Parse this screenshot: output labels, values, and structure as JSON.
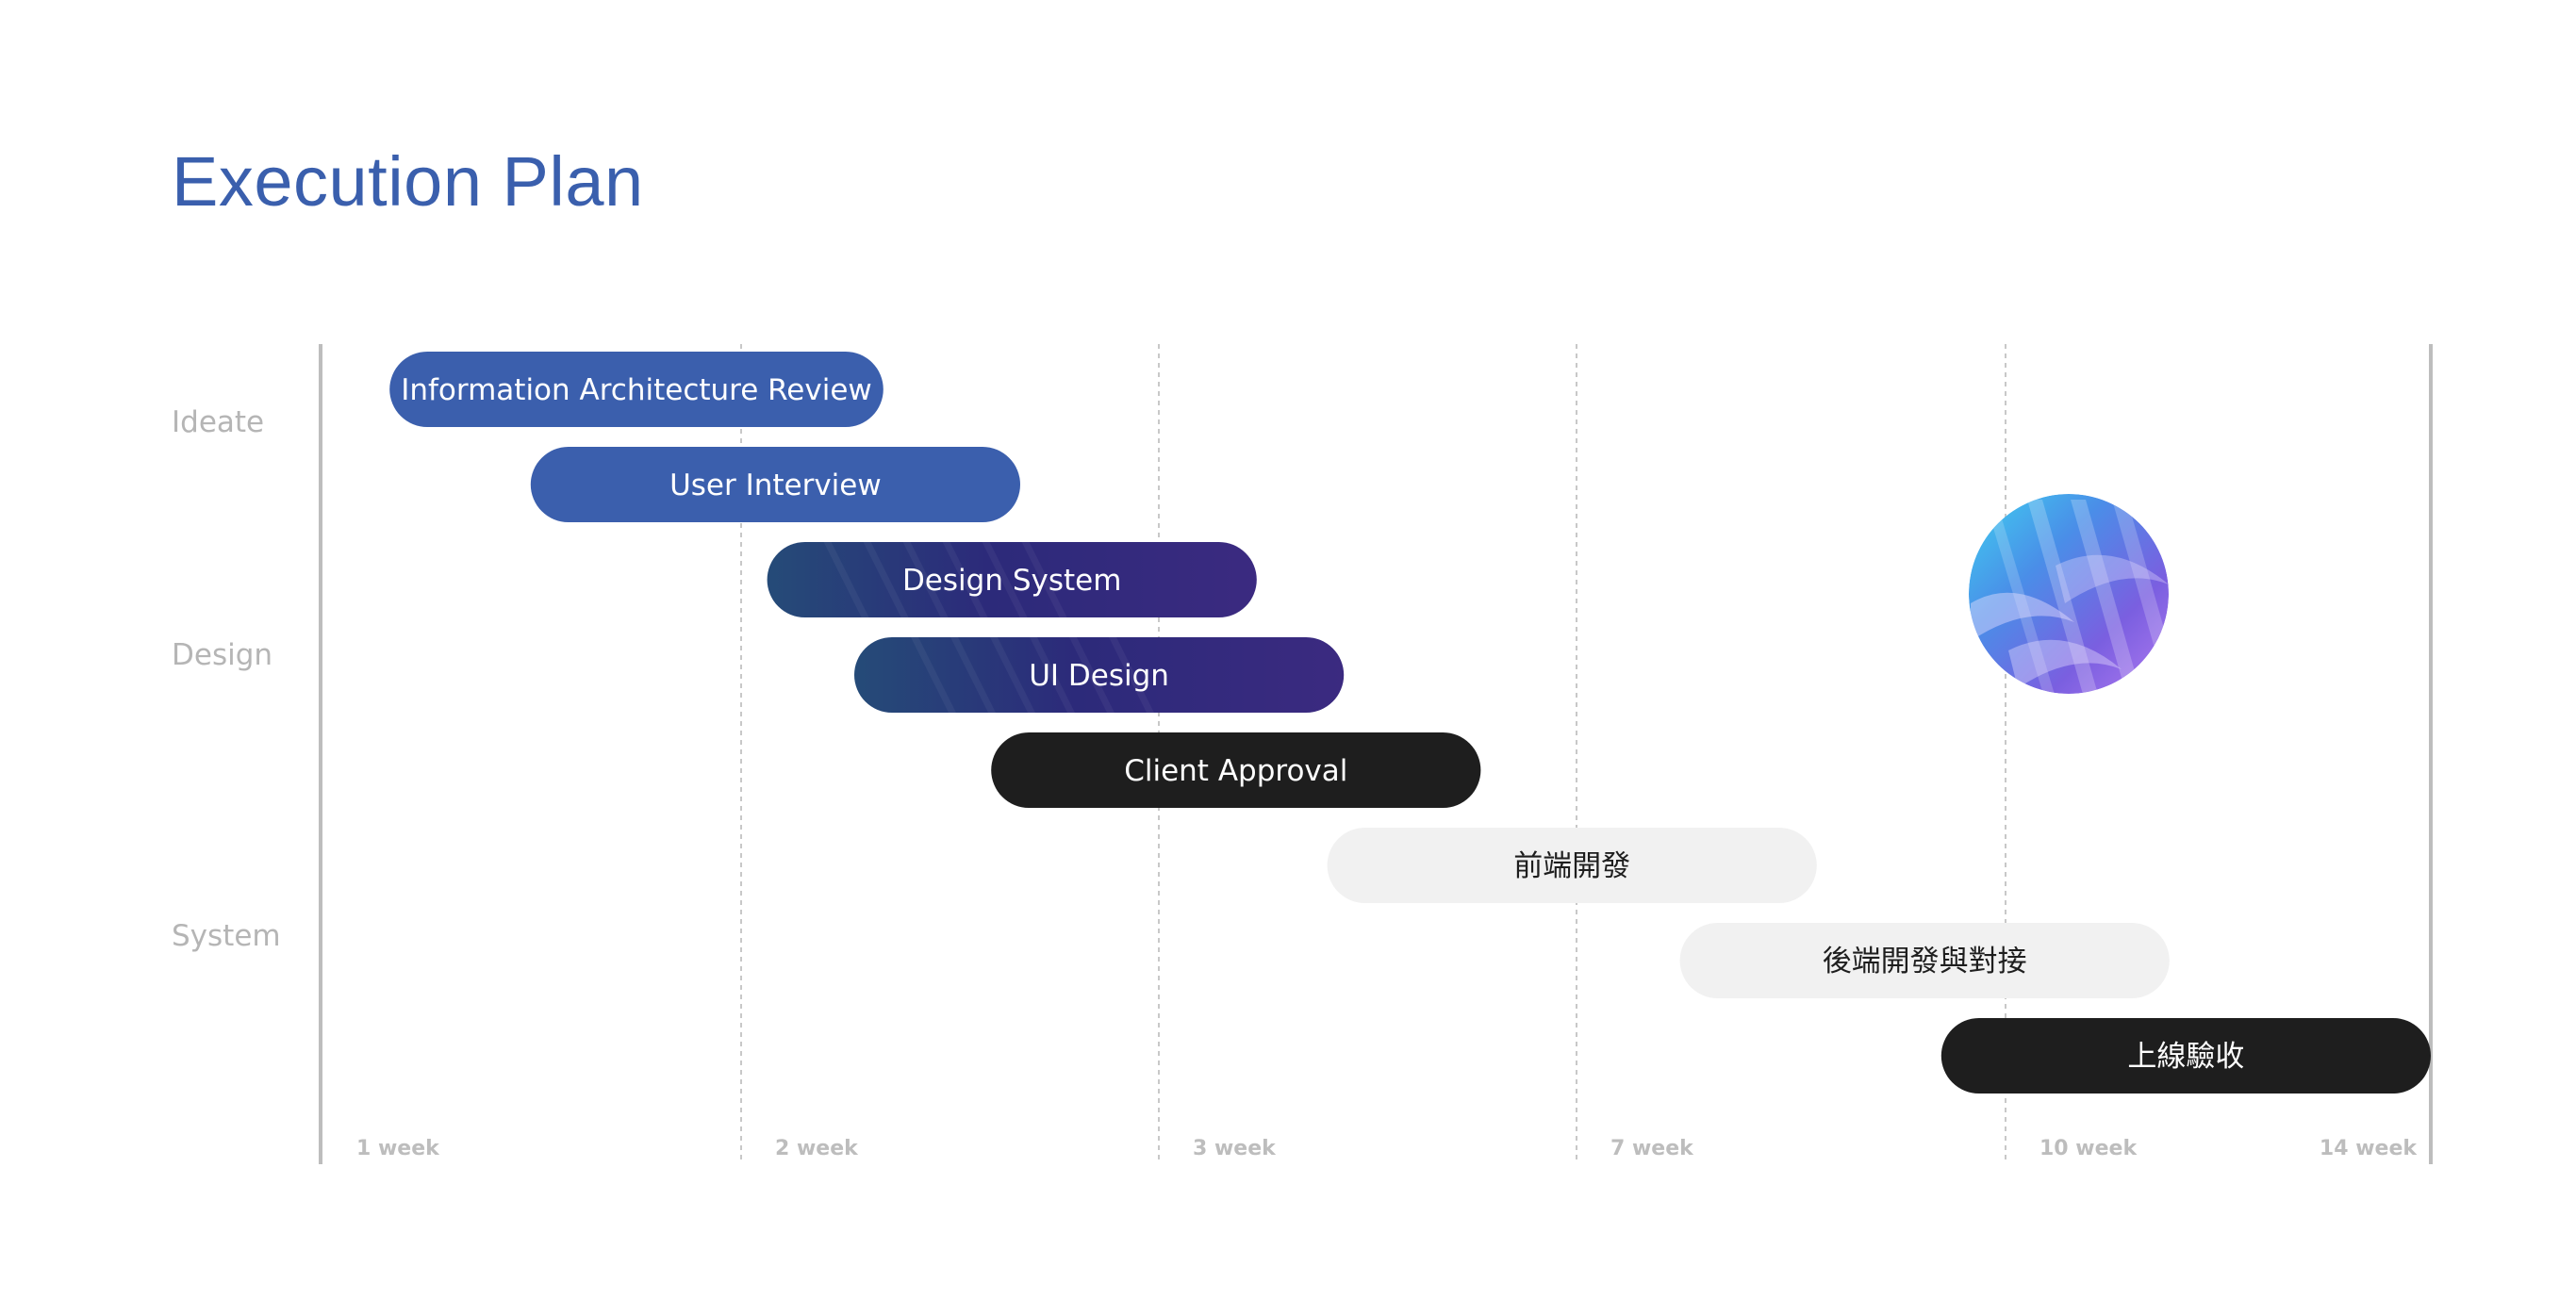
{
  "title": "Execution Plan",
  "colors": {
    "title": "#3a5fad",
    "blue": "#3b5fad",
    "gradient_start": "#254b78",
    "gradient_mid": "#2c2a7a",
    "gradient_end": "#3b2a80",
    "dark": "#1e1e1e",
    "light": "#f1f1f1",
    "axis": "#bdbdbd",
    "grid": "#c8c8c8",
    "muted_text": "#b5b5b5"
  },
  "chart_data": {
    "type": "gantt",
    "title": "Execution Plan",
    "row_groups": [
      "Ideate",
      "Design",
      "System"
    ],
    "x_ticks": [
      "1 week",
      "2 week",
      "3 week",
      "7 week",
      "10 week",
      "14 week"
    ],
    "grid": "dashed vertical lines at 2 week, 3 week, 7 week, 10 week",
    "tasks": [
      {
        "label": "Information Architecture Review",
        "start": 0.08,
        "end": 1.27,
        "style": "blue"
      },
      {
        "label": "User Interview",
        "start": 0.42,
        "end": 1.6,
        "style": "blue"
      },
      {
        "label": "Design System",
        "start": 0.99,
        "end": 2.17,
        "style": "gradient"
      },
      {
        "label": "UI Design",
        "start": 1.2,
        "end": 2.38,
        "style": "gradient"
      },
      {
        "label": "Client Approval",
        "start": 1.53,
        "end": 2.71,
        "style": "dark"
      },
      {
        "label": "前端開發",
        "start": 2.34,
        "end": 3.52,
        "style": "light"
      },
      {
        "label": "後端開發與對接",
        "start": 3.19,
        "end": 4.37,
        "style": "light"
      },
      {
        "label": "上線驗收",
        "start": 3.82,
        "end": 5.0,
        "style": "dark"
      }
    ]
  },
  "decor": {
    "icon": "abstract-gradient-sphere"
  }
}
